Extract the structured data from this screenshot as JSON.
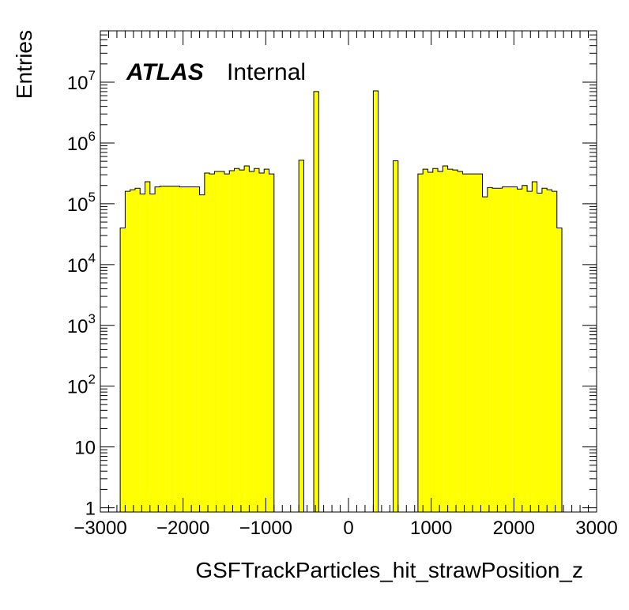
{
  "chart_data": {
    "type": "histogram",
    "title": "",
    "xlabel": "GSFTrackParticles_hit_strawPosition_z",
    "ylabel": "Entries",
    "xlim": [
      -3000,
      3000
    ],
    "ylim": [
      0.85,
      70000000
    ],
    "yscale": "log",
    "grid": false,
    "fill_color": "#ffff00",
    "line_color": "#000000",
    "annotation": {
      "experiment": "ATLAS",
      "status": "Internal"
    },
    "x_ticks": [
      {
        "value": -3000,
        "label": "−3000"
      },
      {
        "value": -2000,
        "label": "−2000"
      },
      {
        "value": -1000,
        "label": "−1000"
      },
      {
        "value": 0,
        "label": "0"
      },
      {
        "value": 1000,
        "label": "1000"
      },
      {
        "value": 2000,
        "label": "2000"
      },
      {
        "value": 3000,
        "label": "3000"
      }
    ],
    "y_ticks": [
      {
        "value": 1,
        "base": "1",
        "exp": ""
      },
      {
        "value": 10,
        "base": "10",
        "exp": ""
      },
      {
        "value": 100,
        "base": "10",
        "exp": "2"
      },
      {
        "value": 1000,
        "base": "10",
        "exp": "3"
      },
      {
        "value": 10000,
        "base": "10",
        "exp": "4"
      },
      {
        "value": 100000,
        "base": "10",
        "exp": "5"
      },
      {
        "value": 1000000,
        "base": "10",
        "exp": "6"
      },
      {
        "value": 10000000,
        "base": "10",
        "exp": "7"
      }
    ],
    "bin_edges": [
      -3000,
      -2940,
      -2880,
      -2820,
      -2760,
      -2700,
      -2640,
      -2580,
      -2520,
      -2460,
      -2400,
      -2340,
      -2280,
      -2220,
      -2160,
      -2100,
      -2040,
      -1980,
      -1920,
      -1860,
      -1800,
      -1740,
      -1680,
      -1620,
      -1560,
      -1500,
      -1440,
      -1380,
      -1320,
      -1260,
      -1200,
      -1140,
      -1080,
      -1020,
      -960,
      -900,
      -840,
      -780,
      -720,
      -660,
      -600,
      -540,
      -480,
      -420,
      -360,
      -300,
      -240,
      -180,
      -120,
      -60,
      0,
      60,
      120,
      180,
      240,
      300,
      360,
      420,
      480,
      540,
      600,
      660,
      720,
      780,
      840,
      900,
      960,
      1020,
      1080,
      1140,
      1200,
      1260,
      1320,
      1380,
      1440,
      1500,
      1560,
      1620,
      1680,
      1740,
      1800,
      1860,
      1920,
      1980,
      2040,
      2100,
      2160,
      2220,
      2280,
      2340,
      2400,
      2460,
      2520,
      2580,
      2640,
      2700,
      2760,
      2820,
      2880,
      2940,
      3000
    ],
    "counts": [
      0,
      0,
      0,
      0,
      40000,
      160000,
      170000,
      180000,
      145000,
      230000,
      145000,
      190000,
      195000,
      195000,
      195000,
      195000,
      190000,
      190000,
      190000,
      190000,
      140000,
      320000,
      310000,
      340000,
      340000,
      310000,
      350000,
      380000,
      360000,
      420000,
      340000,
      380000,
      320000,
      370000,
      310000,
      0,
      0,
      0,
      0,
      0,
      520000,
      0,
      0,
      7000000,
      0,
      0,
      0,
      0,
      0,
      0,
      0,
      0,
      0,
      0,
      0,
      7200000,
      0,
      0,
      0,
      510000,
      0,
      0,
      0,
      0,
      310000,
      370000,
      330000,
      380000,
      340000,
      420000,
      370000,
      360000,
      340000,
      310000,
      310000,
      310000,
      310000,
      130000,
      185000,
      180000,
      180000,
      190000,
      190000,
      190000,
      175000,
      200000,
      160000,
      230000,
      150000,
      180000,
      170000,
      160000,
      40000,
      0,
      0,
      0,
      0,
      0,
      0,
      0
    ]
  }
}
